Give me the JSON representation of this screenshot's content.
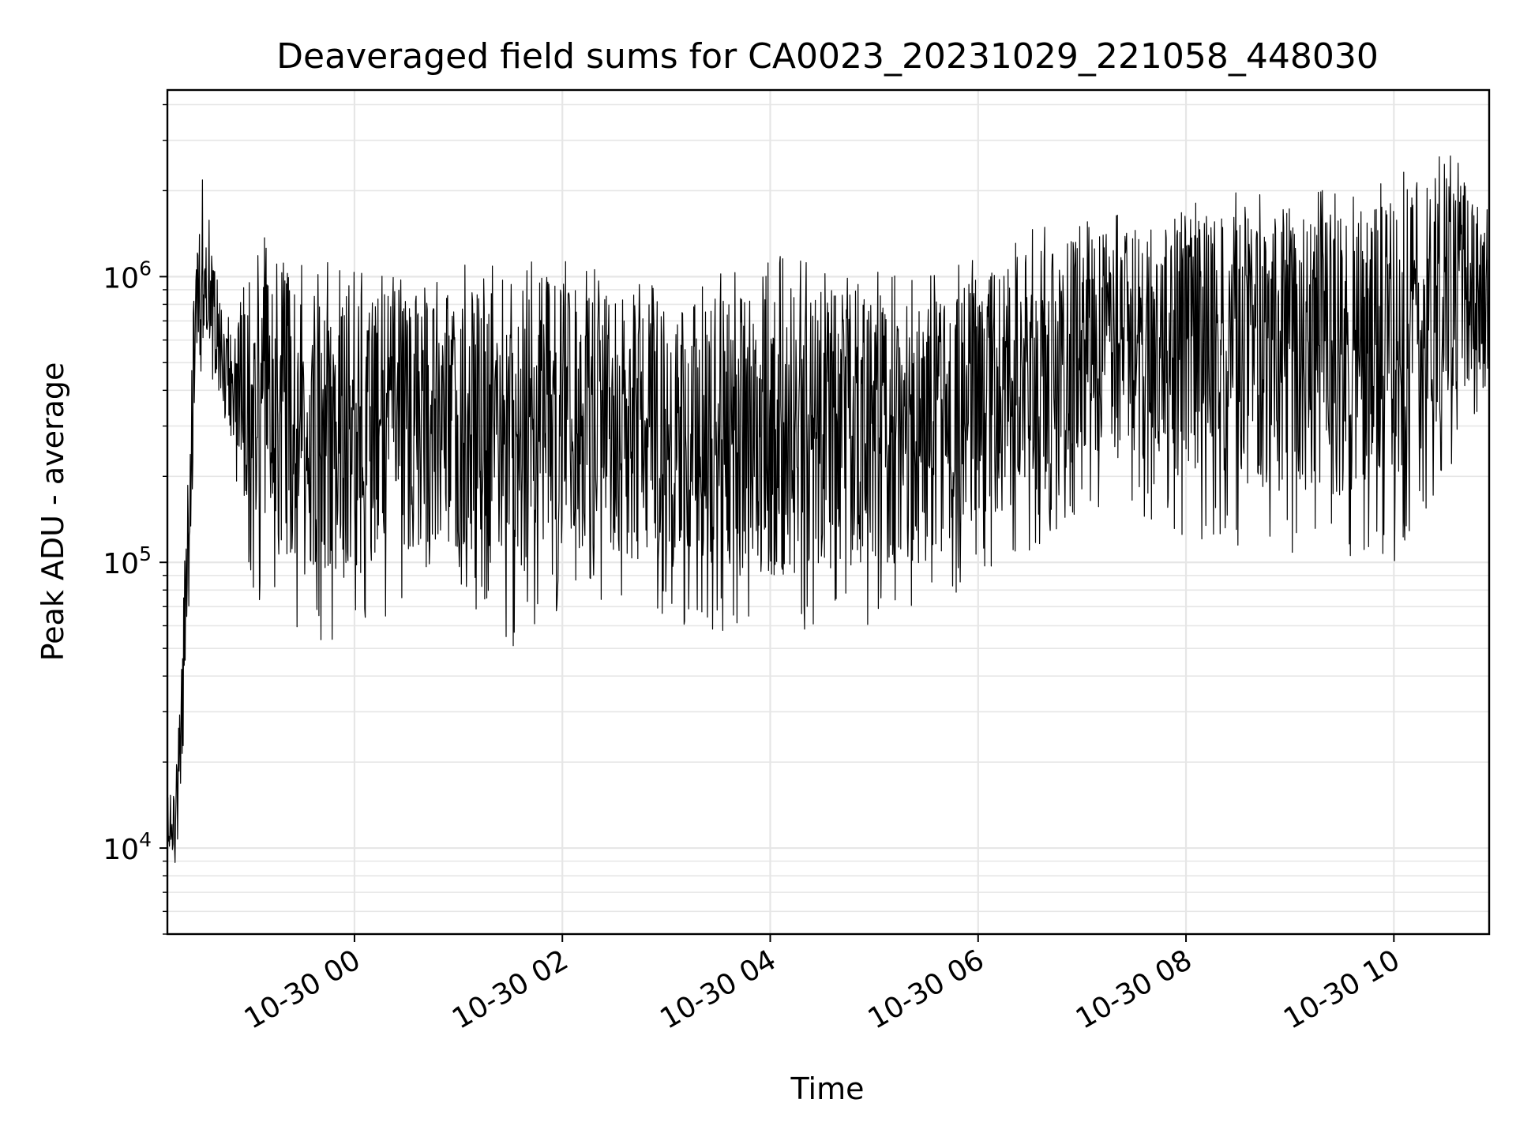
{
  "chart_data": {
    "type": "line",
    "title": "Deaveraged field sums for CA0023_20231029_221058_448030",
    "xlabel": "Time",
    "ylabel": "Peak ADU - average",
    "x_type": "datetime",
    "xlim": [
      "2023-10-29T22:12:00",
      "2023-10-30T10:55:00"
    ],
    "ylim": [
      5000,
      4500000
    ],
    "y_scale": "log",
    "grid": true,
    "line_color": "#000000",
    "grid_color": "#e6e6e6",
    "x_ticks": [
      {
        "value": "2023-10-30T00:00:00",
        "label": "10-30 00"
      },
      {
        "value": "2023-10-30T02:00:00",
        "label": "10-30 02"
      },
      {
        "value": "2023-10-30T04:00:00",
        "label": "10-30 04"
      },
      {
        "value": "2023-10-30T06:00:00",
        "label": "10-30 06"
      },
      {
        "value": "2023-10-30T08:00:00",
        "label": "10-30 08"
      },
      {
        "value": "2023-10-30T10:00:00",
        "label": "10-30 10"
      }
    ],
    "y_ticks": [
      {
        "value": 10000,
        "base": "10",
        "exp": "4"
      },
      {
        "value": 100000,
        "base": "10",
        "exp": "5"
      },
      {
        "value": 1000000,
        "base": "10",
        "exp": "6"
      }
    ],
    "series": [
      {
        "envelope": [
          {
            "t": "2023-10-29T22:12:00",
            "lo": 10000,
            "hi": 17000
          },
          {
            "t": "2023-10-29T22:16:00",
            "lo": 7000,
            "hi": 16000
          },
          {
            "t": "2023-10-29T22:20:00",
            "lo": 8000,
            "hi": 50000
          },
          {
            "t": "2023-10-29T22:24:00",
            "lo": 40000,
            "hi": 300000
          },
          {
            "t": "2023-10-29T22:28:00",
            "lo": 300000,
            "hi": 1200000
          },
          {
            "t": "2023-10-29T22:32:00",
            "lo": 500000,
            "hi": 2300000
          },
          {
            "t": "2023-10-29T22:36:00",
            "lo": 500000,
            "hi": 1700000
          },
          {
            "t": "2023-10-29T22:40:00",
            "lo": 350000,
            "hi": 1300000
          },
          {
            "t": "2023-10-29T22:45:00",
            "lo": 250000,
            "hi": 900000
          },
          {
            "t": "2023-10-29T22:50:00",
            "lo": 200000,
            "hi": 700000
          },
          {
            "t": "2023-10-29T23:00:00",
            "lo": 80000,
            "hi": 1500000
          },
          {
            "t": "2023-10-29T23:30:00",
            "lo": 50000,
            "hi": 1200000
          },
          {
            "t": "2023-10-30T00:00:00",
            "lo": 50000,
            "hi": 1200000
          },
          {
            "t": "2023-10-30T00:30:00",
            "lo": 70000,
            "hi": 1000000
          },
          {
            "t": "2023-10-30T01:00:00",
            "lo": 70000,
            "hi": 1100000
          },
          {
            "t": "2023-10-30T01:30:00",
            "lo": 50000,
            "hi": 1100000
          },
          {
            "t": "2023-10-30T02:00:00",
            "lo": 70000,
            "hi": 1200000
          },
          {
            "t": "2023-10-30T03:00:00",
            "lo": 60000,
            "hi": 900000
          },
          {
            "t": "2023-10-30T04:00:00",
            "lo": 50000,
            "hi": 1200000
          },
          {
            "t": "2023-10-30T05:00:00",
            "lo": 60000,
            "hi": 1100000
          },
          {
            "t": "2023-10-30T05:30:00",
            "lo": 60000,
            "hi": 1000000
          },
          {
            "t": "2023-10-30T06:00:00",
            "lo": 80000,
            "hi": 1200000
          },
          {
            "t": "2023-10-30T06:30:00",
            "lo": 100000,
            "hi": 1500000
          },
          {
            "t": "2023-10-30T07:00:00",
            "lo": 150000,
            "hi": 1600000
          },
          {
            "t": "2023-10-30T07:30:00",
            "lo": 150000,
            "hi": 1800000
          },
          {
            "t": "2023-10-30T08:00:00",
            "lo": 120000,
            "hi": 2000000
          },
          {
            "t": "2023-10-30T09:00:00",
            "lo": 100000,
            "hi": 2000000
          },
          {
            "t": "2023-10-30T10:00:00",
            "lo": 100000,
            "hi": 2200000
          },
          {
            "t": "2023-10-30T10:30:00",
            "lo": 200000,
            "hi": 3000000
          },
          {
            "t": "2023-10-30T10:55:00",
            "lo": 400000,
            "hi": 1800000
          }
        ]
      }
    ]
  }
}
